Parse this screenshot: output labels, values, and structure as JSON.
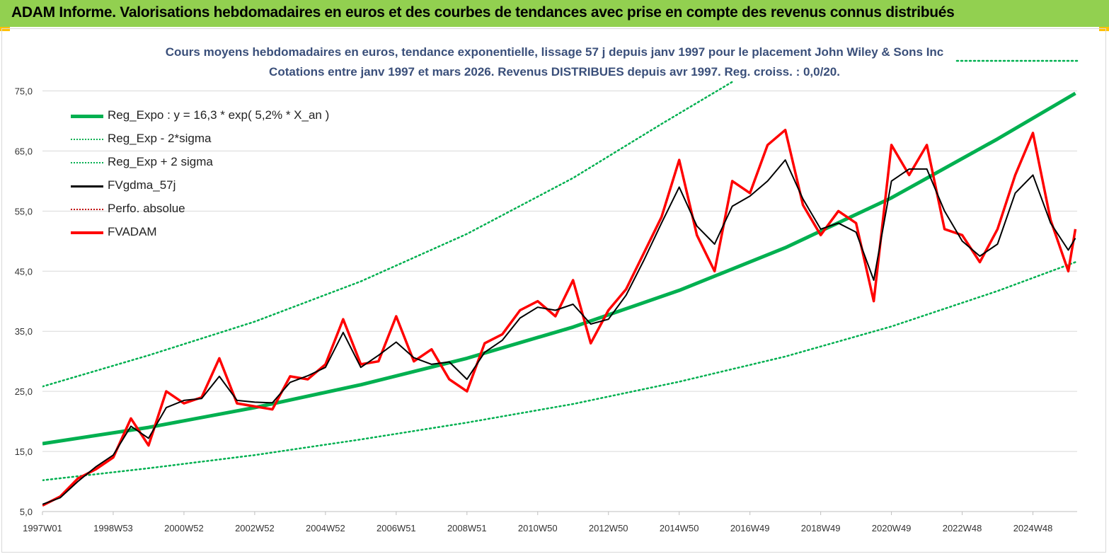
{
  "header": {
    "title": "ADAM Informe. Valorisations hebdomadaires en euros et des courbes de tendances avec prise en compte des revenus connus distribués"
  },
  "colors": {
    "header_bg": "#92d050",
    "accent": "#ffc000",
    "green": "#00b050",
    "red": "#ff0000",
    "black": "#000000",
    "grid": "#d9d9d9"
  },
  "chart_data": {
    "type": "line",
    "title": "Cours moyens hebdomadaires en euros, tendance exponentielle, lissage 57 j depuis janv 1997 pour le placement John Wiley & Sons Inc",
    "subtitle": "Cotations entre janv 1997 et mars 2026. Revenus DISTRIBUES depuis avr 1997. Reg. croiss. : 0,0/20.",
    "xlabel": "",
    "ylabel": "",
    "ylim": [
      5,
      80
    ],
    "xlim": [
      1997.0,
      2026.25
    ],
    "grid": true,
    "legend_position": "top-left",
    "y_ticks": [
      "75,0",
      "65,0",
      "55,0",
      "45,0",
      "35,0",
      "25,0",
      "15,0",
      "5,0"
    ],
    "y_tick_values": [
      75,
      65,
      55,
      45,
      35,
      25,
      15,
      5
    ],
    "x_ticks": [
      "1997W01",
      "1998W53",
      "2000W52",
      "2002W52",
      "2004W52",
      "2006W51",
      "2008W51",
      "2010W50",
      "2012W50",
      "2014W50",
      "2016W49",
      "2018W49",
      "2020W49",
      "2022W48",
      "2024W48"
    ],
    "x_tick_values": [
      1997.0,
      1999.0,
      2001.0,
      2003.0,
      2005.0,
      2007.0,
      2009.0,
      2011.0,
      2013.0,
      2015.0,
      2017.0,
      2019.0,
      2021.0,
      2023.0,
      2025.0
    ],
    "series": [
      {
        "name": "Reg_Expo : y = 16,3 * exp( 5,2% *  X_an )",
        "color": "#00b050",
        "style": "solid-thick",
        "x": [
          1997.0,
          2000.0,
          2003.0,
          2006.0,
          2009.0,
          2012.0,
          2015.0,
          2018.0,
          2021.0,
          2024.0,
          2026.2
        ],
        "values": [
          16.3,
          19.0,
          22.3,
          26.1,
          30.5,
          35.7,
          41.8,
          48.9,
          57.2,
          67.0,
          74.6
        ]
      },
      {
        "name": "Reg_Exp - 2*sigma",
        "color": "#00b050",
        "style": "dotted",
        "x": [
          1997.0,
          2000.0,
          2003.0,
          2006.0,
          2009.0,
          2012.0,
          2015.0,
          2018.0,
          2021.0,
          2024.0,
          2026.2
        ],
        "values": [
          10.2,
          12.2,
          14.4,
          17.0,
          19.8,
          22.9,
          26.6,
          30.8,
          35.8,
          41.7,
          46.5
        ]
      },
      {
        "name": "Reg_Exp + 2 sigma",
        "color": "#00b050",
        "style": "dotted",
        "x": [
          1997.0,
          2000.0,
          2003.0,
          2006.0,
          2009.0,
          2012.0,
          2014.5,
          2016.5
        ],
        "values": [
          25.8,
          31.0,
          36.6,
          43.3,
          51.2,
          60.5,
          69.5,
          76.5
        ]
      },
      {
        "name": "FVgdma_57j",
        "color": "#000000",
        "style": "solid",
        "x": [
          1997.0,
          1997.5,
          1998.0,
          1998.5,
          1999.0,
          1999.5,
          2000.0,
          2000.5,
          2001.0,
          2001.5,
          2002.0,
          2002.5,
          2003.0,
          2003.5,
          2004.0,
          2004.5,
          2005.0,
          2005.5,
          2006.0,
          2006.5,
          2007.0,
          2007.5,
          2008.0,
          2008.5,
          2009.0,
          2009.5,
          2010.0,
          2010.5,
          2011.0,
          2011.5,
          2012.0,
          2012.5,
          2013.0,
          2013.5,
          2014.0,
          2014.5,
          2015.0,
          2015.5,
          2016.0,
          2016.5,
          2017.0,
          2017.5,
          2018.0,
          2018.5,
          2019.0,
          2019.5,
          2020.0,
          2020.5,
          2021.0,
          2021.5,
          2022.0,
          2022.5,
          2023.0,
          2023.5,
          2024.0,
          2024.5,
          2025.0,
          2025.5,
          2026.0,
          2026.2
        ],
        "values": [
          6.2,
          7.3,
          10.0,
          12.4,
          14.4,
          19.2,
          17.2,
          22.3,
          23.5,
          23.8,
          27.5,
          23.5,
          23.2,
          23.1,
          26.5,
          27.6,
          29.0,
          34.8,
          29.0,
          31.0,
          33.2,
          30.6,
          29.5,
          29.9,
          27.0,
          31.5,
          33.5,
          37.2,
          39.0,
          38.5,
          39.5,
          36.2,
          37.0,
          41.0,
          46.8,
          53.0,
          59.0,
          52.5,
          49.5,
          55.8,
          57.5,
          60.0,
          63.5,
          57.0,
          52.0,
          53.0,
          51.5,
          43.5,
          60.0,
          62.0,
          62.0,
          55.0,
          50.0,
          47.5,
          49.5,
          58.0,
          61.0,
          53.0,
          48.5,
          50.5
        ]
      },
      {
        "name": "Perfo. absolue",
        "color": "#c00000",
        "style": "dotted",
        "x": [],
        "values": []
      },
      {
        "name": "FVADAM",
        "color": "#ff0000",
        "style": "solid-thick",
        "x": [
          1997.0,
          1997.5,
          1998.0,
          1998.5,
          1999.0,
          1999.5,
          2000.0,
          2000.5,
          2001.0,
          2001.5,
          2002.0,
          2002.5,
          2003.0,
          2003.5,
          2004.0,
          2004.5,
          2005.0,
          2005.5,
          2006.0,
          2006.5,
          2007.0,
          2007.5,
          2008.0,
          2008.5,
          2009.0,
          2009.5,
          2010.0,
          2010.5,
          2011.0,
          2011.5,
          2012.0,
          2012.5,
          2013.0,
          2013.5,
          2014.0,
          2014.5,
          2015.0,
          2015.5,
          2016.0,
          2016.5,
          2017.0,
          2017.5,
          2018.0,
          2018.5,
          2019.0,
          2019.5,
          2020.0,
          2020.5,
          2021.0,
          2021.5,
          2022.0,
          2022.5,
          2023.0,
          2023.5,
          2024.0,
          2024.5,
          2025.0,
          2025.5,
          2026.0,
          2026.2
        ],
        "values": [
          6.0,
          7.5,
          10.5,
          12.0,
          14.0,
          20.5,
          16.0,
          25.0,
          23.0,
          24.0,
          30.5,
          23.0,
          22.5,
          22.0,
          27.5,
          27.0,
          29.5,
          37.0,
          29.5,
          30.0,
          37.5,
          30.0,
          32.0,
          27.0,
          25.0,
          33.0,
          34.5,
          38.5,
          40.0,
          37.5,
          43.5,
          33.0,
          38.5,
          42.0,
          48.0,
          54.0,
          63.5,
          51.0,
          45.0,
          60.0,
          58.0,
          66.0,
          68.5,
          56.0,
          51.0,
          55.0,
          53.0,
          40.0,
          66.0,
          61.0,
          66.0,
          52.0,
          51.0,
          46.5,
          52.0,
          61.0,
          68.0,
          53.5,
          45.0,
          52.0
        ]
      }
    ]
  }
}
